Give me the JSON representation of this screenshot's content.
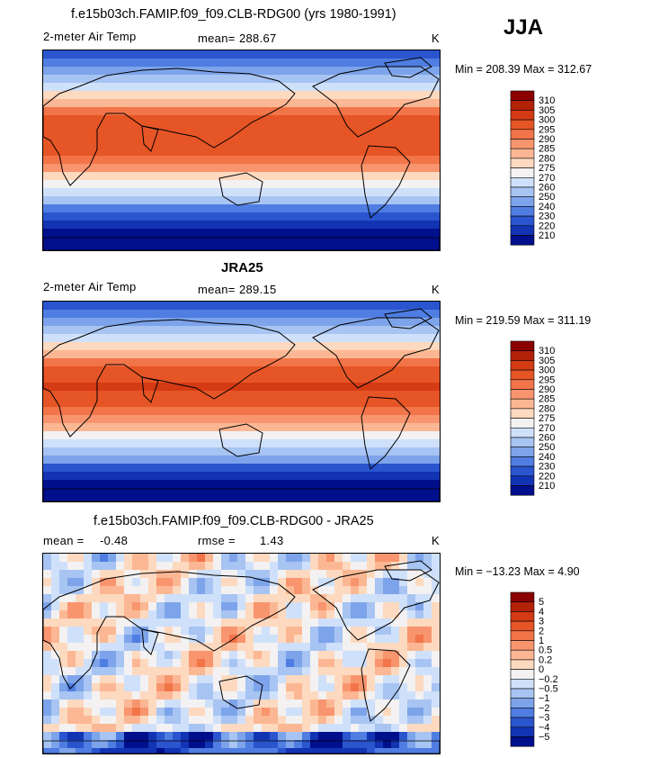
{
  "season": "JJA",
  "panels": [
    {
      "title": "f.e15b03ch.FAMIP.f09_f09.CLB-RDG00 (yrs 1980-1991)",
      "variable": "2-meter Air Temp",
      "stat1_label": "mean=",
      "stat1_value": "288.67",
      "units": "K",
      "minmax": "Min = 208.39 Max = 312.67",
      "colorbar_labels": [
        "310",
        "305",
        "300",
        "295",
        "290",
        "285",
        "280",
        "275",
        "270",
        "260",
        "250",
        "240",
        "230",
        "220",
        "210"
      ]
    },
    {
      "title": "JRA25",
      "variable": "2-meter Air Temp",
      "stat1_label": "mean=",
      "stat1_value": "289.15",
      "units": "K",
      "minmax": "Min = 219.59 Max = 311.19",
      "colorbar_labels": [
        "310",
        "305",
        "300",
        "295",
        "290",
        "285",
        "280",
        "275",
        "270",
        "260",
        "250",
        "240",
        "230",
        "220",
        "210"
      ]
    },
    {
      "title": "f.e15b03ch.FAMIP.f09_f09.CLB-RDG00 - JRA25",
      "stat1_label": "mean =",
      "stat1_value": "-0.48",
      "stat2_label": "rmse =",
      "stat2_value": "1.43",
      "units": "K",
      "minmax": "Min = −13.23 Max =    4.90",
      "colorbar_labels": [
        "5",
        "4",
        "3",
        "2",
        "1",
        "0.5",
        "0.2",
        "0",
        "−0.2",
        "−0.5",
        "−1",
        "−2",
        "−3",
        "−4",
        "−5"
      ]
    }
  ],
  "colors": {
    "abs_scale": [
      "#8b0000",
      "#b22208",
      "#d43a14",
      "#e65525",
      "#f27449",
      "#f8956e",
      "#fbb793",
      "#fdd9bf",
      "#f3f1f1",
      "#cfe0fa",
      "#a7c4f2",
      "#7da3ea",
      "#4f7de2",
      "#2a55cf",
      "#1234b4",
      "#000f8c"
    ],
    "diff_scale": [
      "#8b0000",
      "#b22208",
      "#d43a14",
      "#e65525",
      "#f27449",
      "#f8956e",
      "#fbb793",
      "#fdd9bf",
      "#f3f1f1",
      "#cfe0fa",
      "#a7c4f2",
      "#7da3ea",
      "#4f7de2",
      "#2a55cf",
      "#1234b4",
      "#000f8c"
    ]
  }
}
